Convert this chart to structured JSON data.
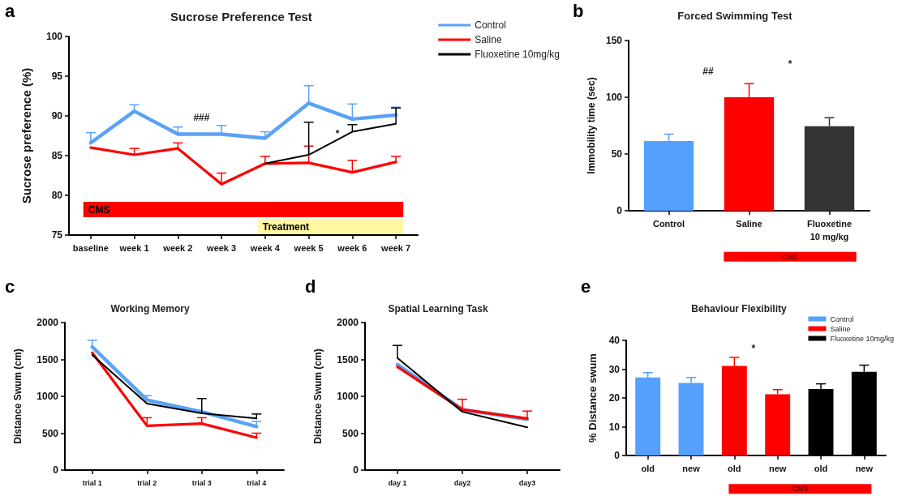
{
  "chart_data": [
    {
      "type": "line",
      "title": "Sucrose Preference Test",
      "ylabel": "Sucrose preference (%)",
      "categories": [
        "baseline",
        "week 1",
        "week 2",
        "week 3",
        "week 4",
        "week 5",
        "week 6",
        "week 7"
      ],
      "series": [
        {
          "name": "Control",
          "color": "#5aa2f5",
          "values": [
            86.6,
            90.6,
            87.7,
            87.7,
            87.2,
            91.6,
            89.6,
            90.1
          ],
          "errors": [
            [
              86.6,
              87.9
            ],
            [
              90.6,
              91.4
            ],
            [
              87.7,
              88.6
            ],
            [
              87.7,
              88.8
            ],
            [
              87.2,
              88.0
            ],
            [
              91.6,
              93.8
            ],
            [
              89.6,
              91.5
            ],
            [
              90.1,
              91.1
            ]
          ]
        },
        {
          "name": "Saline",
          "color": "#ff0000",
          "values": [
            86.0,
            85.1,
            85.9,
            81.4,
            84.0,
            84.1,
            82.9,
            84.2
          ],
          "errors": [
            null,
            [
              85.1,
              85.9
            ],
            [
              85.9,
              86.6
            ],
            [
              81.4,
              82.8
            ],
            [
              84.0,
              84.9
            ],
            [
              84.1,
              86.2
            ],
            [
              82.9,
              84.4
            ],
            [
              84.2,
              84.9
            ]
          ]
        },
        {
          "name": "Fluoxetine 10mg/kg",
          "color": "#000000",
          "values": [
            null,
            null,
            null,
            null,
            84.0,
            85.1,
            88.0,
            89.0
          ],
          "errors": [
            null,
            null,
            null,
            null,
            null,
            [
              85.1,
              89.2
            ],
            [
              88.0,
              88.9
            ],
            [
              89.0,
              91.0
            ]
          ]
        }
      ],
      "ylim": [
        75,
        100
      ],
      "yticks": [
        75,
        80,
        85,
        90,
        95,
        100
      ],
      "legend": "top right",
      "marker": "none",
      "line_style": "solid",
      "bands": [
        {
          "axis": "x",
          "from": "baseline",
          "to": "week 7",
          "label": "CMS",
          "color": "#ff0000"
        },
        {
          "axis": "x",
          "from": "week 4",
          "to": "week 7",
          "label": "Treatment",
          "color": "#fff8a0"
        }
      ],
      "annotations": [
        "a",
        "###",
        "*"
      ]
    },
    {
      "type": "bar",
      "title": "Forced Swimming Test",
      "ylabel": "Immobility time (sec)",
      "categories": [
        "Control",
        "Saline",
        "Fluoxetine\n10 mg/kg"
      ],
      "values": [
        61.5,
        100,
        74.5
      ],
      "colors": [
        "#559ffd",
        "#ff0000",
        "#333333"
      ],
      "errors": [
        [
          61.5,
          67.5
        ],
        [
          100,
          112
        ],
        [
          74.5,
          82
        ]
      ],
      "ylim": [
        0,
        150
      ],
      "yticks": [
        0,
        50,
        100,
        150
      ],
      "annotations": [
        "b",
        "##",
        "*",
        "CMS"
      ]
    },
    {
      "type": "line",
      "title": "Working Memory",
      "ylabel": "Distance Swum (cm)",
      "categories": [
        "trial 1",
        "trial 2",
        "trial 3",
        "trial 4"
      ],
      "series": [
        {
          "color": "#5aa2f5",
          "values": [
            1670,
            950,
            790,
            590
          ],
          "errors": [
            [
              1670,
              1760
            ],
            [
              950,
              1010
            ],
            null,
            [
              590,
              660
            ]
          ]
        },
        {
          "color": "#ff0000",
          "values": [
            1590,
            600,
            630,
            440
          ],
          "errors": [
            null,
            [
              600,
              710
            ],
            [
              630,
              710
            ],
            [
              440,
              500
            ]
          ]
        },
        {
          "color": "#000000",
          "values": [
            1560,
            900,
            770,
            700
          ],
          "errors": [
            null,
            null,
            [
              770,
              970
            ],
            [
              700,
              760
            ]
          ]
        }
      ],
      "ylim": [
        0,
        2000
      ],
      "yticks": [
        0,
        500,
        1000,
        1500,
        2000
      ],
      "marker": "none",
      "line_style": "solid",
      "annotations": [
        "c"
      ]
    },
    {
      "type": "line",
      "title": "Spatial Learning Task",
      "ylabel": "Distance Swum (cm)",
      "categories": [
        "day 1",
        "day2",
        "day3"
      ],
      "series": [
        {
          "color": "#5aa2f5",
          "values": [
            1430,
            820,
            690
          ]
        },
        {
          "color": "#ff0000",
          "values": [
            1400,
            820,
            700
          ],
          "errors": [
            null,
            [
              820,
              960
            ],
            [
              700,
              800
            ]
          ]
        },
        {
          "color": "#000000",
          "values": [
            1520,
            790,
            580
          ],
          "errors": [
            [
              1520,
              1690
            ],
            null,
            null
          ]
        }
      ],
      "ylim": [
        0,
        2000
      ],
      "yticks": [
        0,
        500,
        1000,
        1500,
        2000
      ],
      "marker": "none",
      "line_style": "solid",
      "annotations": [
        "d"
      ]
    },
    {
      "type": "bar",
      "title": "Behaviour Flexibility",
      "ylabel": "% Distance swum",
      "categories": [
        "old",
        "new",
        "old",
        "new",
        "old",
        "new"
      ],
      "series": [
        {
          "name": "Control",
          "color": "#559ffd",
          "values": [
            27.1,
            25.2,
            null,
            null,
            null,
            null
          ],
          "errors": [
            [
              27.1,
              28.8
            ],
            [
              25.2,
              27.1
            ],
            null,
            null,
            null,
            null
          ]
        },
        {
          "name": "Saline",
          "color": "#ff0000",
          "values": [
            null,
            null,
            31.1,
            21.3,
            null,
            null
          ],
          "errors": [
            null,
            null,
            [
              31.1,
              34.1
            ],
            [
              21.3,
              22.9
            ],
            null,
            null
          ]
        },
        {
          "name": "Fluoxetine 10mg/kg",
          "color": "#000000",
          "values": [
            null,
            null,
            null,
            null,
            23.1,
            29.1
          ],
          "errors": [
            null,
            null,
            null,
            null,
            [
              23.1,
              24.9
            ],
            [
              29.1,
              31.4
            ]
          ]
        }
      ],
      "ylim": [
        0,
        40
      ],
      "yticks": [
        0,
        10,
        20,
        30,
        40
      ],
      "legend": "top right",
      "annotations": [
        "e",
        "*",
        "CMS"
      ]
    }
  ]
}
